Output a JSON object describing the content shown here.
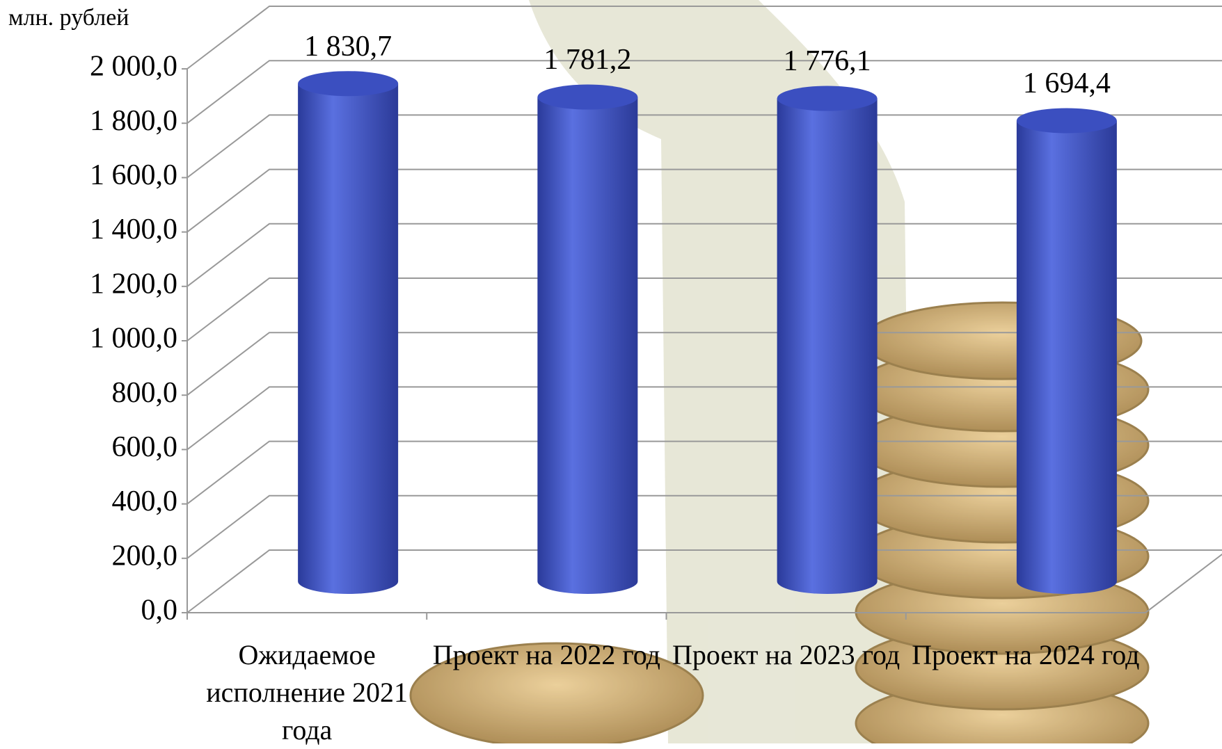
{
  "chart_data": {
    "type": "bar3d",
    "unit_label": "млн. рублей",
    "categories": [
      "Ожидаемое исполнение 2021 года",
      "Проект на 2022 год",
      "Проект на 2023 год",
      "Проект на 2024 год"
    ],
    "values": [
      1830.7,
      1781.2,
      1776.1,
      1694.4
    ],
    "value_labels": [
      "1 830,7",
      "1 781,2",
      "1 776,1",
      "1 694,4"
    ],
    "color": "#4a5fcf",
    "ylim": [
      0,
      2000
    ],
    "yticks": [
      {
        "value": 0,
        "label": "0,0"
      },
      {
        "value": 200,
        "label": "200,0"
      },
      {
        "value": 400,
        "label": "400,0"
      },
      {
        "value": 600,
        "label": "600,0"
      },
      {
        "value": 800,
        "label": "800,0"
      },
      {
        "value": 1000,
        "label": "1 000,0"
      },
      {
        "value": 1200,
        "label": "1 200,0"
      },
      {
        "value": 1400,
        "label": "1 400,0"
      },
      {
        "value": 1600,
        "label": "1 600,0"
      },
      {
        "value": 1800,
        "label": "1 800,0"
      },
      {
        "value": 2000,
        "label": "2 000,0"
      }
    ],
    "grid": true
  }
}
